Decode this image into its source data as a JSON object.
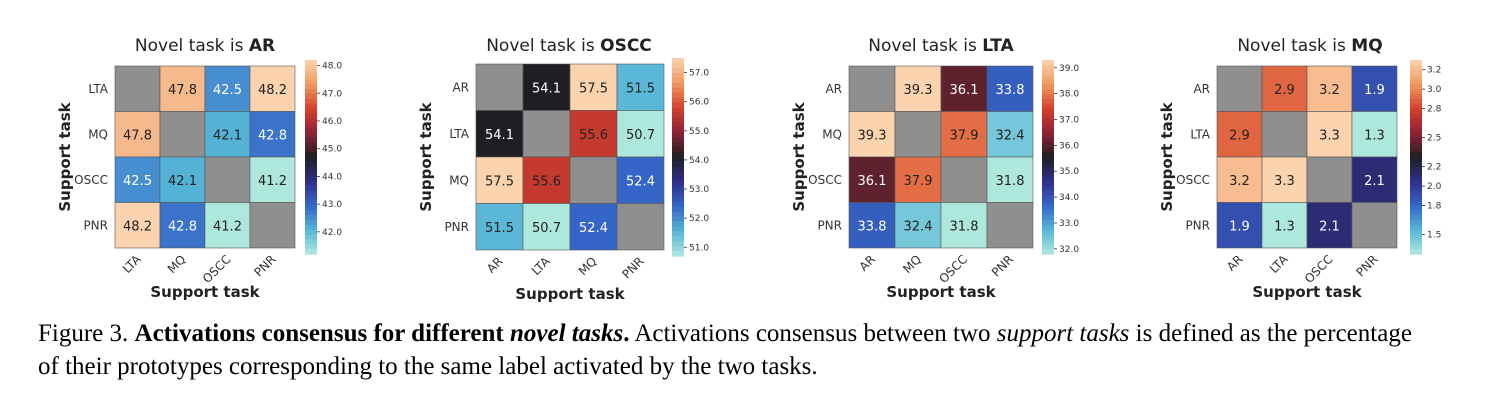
{
  "chart_data": [
    {
      "type": "heatmap",
      "title_prefix": "Novel task is",
      "title_task": "AR",
      "xlabel": "Support task",
      "ylabel": "Support task",
      "categories": [
        "LTA",
        "MQ",
        "OSCC",
        "PNR"
      ],
      "values": [
        [
          null,
          47.8,
          42.5,
          48.2
        ],
        [
          47.8,
          null,
          42.1,
          42.8
        ],
        [
          42.5,
          42.1,
          null,
          41.2
        ],
        [
          48.2,
          42.8,
          41.2,
          null
        ]
      ],
      "colorbar": {
        "range": [
          41.2,
          48.2
        ],
        "ticks": [
          "42.0",
          "43.0",
          "44.0",
          "45.0",
          "46.0",
          "47.0",
          "48.0"
        ]
      }
    },
    {
      "type": "heatmap",
      "title_prefix": "Novel task is",
      "title_task": "OSCC",
      "xlabel": "Support task",
      "ylabel": "Support task",
      "categories": [
        "AR",
        "LTA",
        "MQ",
        "PNR"
      ],
      "values": [
        [
          null,
          54.1,
          57.5,
          51.5
        ],
        [
          54.1,
          null,
          55.6,
          50.7
        ],
        [
          57.5,
          55.6,
          null,
          52.4
        ],
        [
          51.5,
          50.7,
          52.4,
          null
        ]
      ],
      "colorbar": {
        "range": [
          50.7,
          57.5
        ],
        "ticks": [
          "51.0",
          "52.0",
          "53.0",
          "54.0",
          "55.0",
          "56.0",
          "57.0"
        ]
      }
    },
    {
      "type": "heatmap",
      "title_prefix": "Novel task is",
      "title_task": "LTA",
      "xlabel": "Support task",
      "ylabel": "Support task",
      "categories": [
        "AR",
        "MQ",
        "OSCC",
        "PNR"
      ],
      "values": [
        [
          null,
          39.3,
          36.1,
          33.8
        ],
        [
          39.3,
          null,
          37.9,
          32.4
        ],
        [
          36.1,
          37.9,
          null,
          31.8
        ],
        [
          33.8,
          32.4,
          31.8,
          null
        ]
      ],
      "colorbar": {
        "range": [
          31.8,
          39.3
        ],
        "ticks": [
          "32.0",
          "33.0",
          "34.0",
          "35.0",
          "36.0",
          "37.0",
          "38.0",
          "39.0"
        ]
      }
    },
    {
      "type": "heatmap",
      "title_prefix": "Novel task is",
      "title_task": "MQ",
      "xlabel": "Support task",
      "ylabel": "Support task",
      "categories": [
        "AR",
        "LTA",
        "OSCC",
        "PNR"
      ],
      "values": [
        [
          null,
          2.9,
          3.2,
          1.9
        ],
        [
          2.9,
          null,
          3.3,
          1.3
        ],
        [
          3.2,
          3.3,
          null,
          2.1
        ],
        [
          1.9,
          1.3,
          2.1,
          null
        ]
      ],
      "colorbar": {
        "range": [
          1.3,
          3.3
        ],
        "ticks": [
          "1.5",
          "1.8",
          "2.0",
          "2.2",
          "2.5",
          "2.8",
          "3.0",
          "3.2"
        ]
      }
    }
  ],
  "colors": {
    "diagonal": "#8f8f8f",
    "colormap": [
      "#aee8dd",
      "#56b4d7",
      "#3566c7",
      "#2f2f8a",
      "#1f1f23",
      "#8e2237",
      "#d6412c",
      "#f09a60",
      "#fbd3af"
    ]
  },
  "caption": {
    "label": "Figure 3.",
    "bold_a": "Activations consensus for different",
    "bold_italic": "novel tasks",
    "bold_end": ".",
    "text_a": "Activations consensus between two",
    "italic": "support tasks",
    "text_b": "is defined as the percentage",
    "line2": "of their prototypes corresponding to the same label activated by the two tasks."
  }
}
